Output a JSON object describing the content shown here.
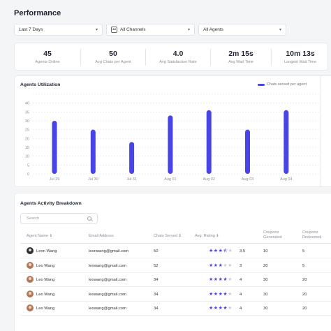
{
  "page": {
    "title": "Performance"
  },
  "filters": {
    "period": "Last 7 Days",
    "channels_icon": "All",
    "channels": "All Channels",
    "agents": "All Agents"
  },
  "stats": [
    {
      "value": "45",
      "label": "Agents Online"
    },
    {
      "value": "50",
      "label": "Avg Chats per Agent"
    },
    {
      "value": "4.0",
      "label": "Avg Satisfaction Rate"
    },
    {
      "value": "2m 15s",
      "label": "Avg Wait Time"
    },
    {
      "value": "10m 13s",
      "label": "Longest Wait Time"
    }
  ],
  "utilization": {
    "title": "Agents Utilization",
    "legend": "Chats served per agent",
    "color": "#4844e6"
  },
  "chart_data": {
    "type": "bar",
    "title": "Agents Utilization",
    "categories": [
      "Jul 29",
      "Jul 30",
      "Jul 31",
      "Aug 01",
      "Aug 02",
      "Aug 03",
      "Aug 04"
    ],
    "series": [
      {
        "name": "Chats served per agent",
        "values": [
          30,
          25,
          18,
          33,
          36,
          25,
          36
        ]
      }
    ],
    "y_ticks": [
      "0",
      "5",
      "10",
      "15",
      "20",
      "25",
      "30",
      "35",
      "40",
      "45"
    ],
    "ylim": [
      0,
      45
    ],
    "grid": true,
    "legend": "top-right"
  },
  "activity": {
    "title": "Agents Activity Breakdown",
    "search_placeholder": "Search",
    "columns": {
      "name": "Agent Name",
      "email": "Email Address",
      "chats": "Chats Served",
      "rating": "Avg. Rating",
      "coupons_gen_1": "Coupons",
      "coupons_gen_2": "Generated",
      "coupons_red_1": "Coupons",
      "coupons_red_2": "Redeemed",
      "sort_glyph": "⇕"
    },
    "rows": [
      {
        "name": "Leon Wang",
        "email": "leonwang@gmail.com",
        "chats": "50",
        "stars": 3.5,
        "rating": "3.5",
        "generated": "10",
        "redeemed": "5",
        "avatar": "dark"
      },
      {
        "name": "Leo Wang",
        "email": "leowang@gmail.com",
        "chats": "52",
        "stars": 3,
        "rating": "3",
        "generated": "20",
        "redeemed": "5",
        "avatar": "light"
      },
      {
        "name": "Leo Wang",
        "email": "leowang@gmail.com",
        "chats": "34",
        "stars": 4,
        "rating": "4",
        "generated": "30",
        "redeemed": "20",
        "avatar": "light"
      },
      {
        "name": "Leo Wang",
        "email": "leowang@gmail.com",
        "chats": "34",
        "stars": 4,
        "rating": "4",
        "generated": "30",
        "redeemed": "20",
        "avatar": "light"
      },
      {
        "name": "Leo Wang",
        "email": "leowang@gmail.com",
        "chats": "34",
        "stars": 4,
        "rating": "4",
        "generated": "30",
        "redeemed": "20",
        "avatar": "light"
      }
    ]
  }
}
